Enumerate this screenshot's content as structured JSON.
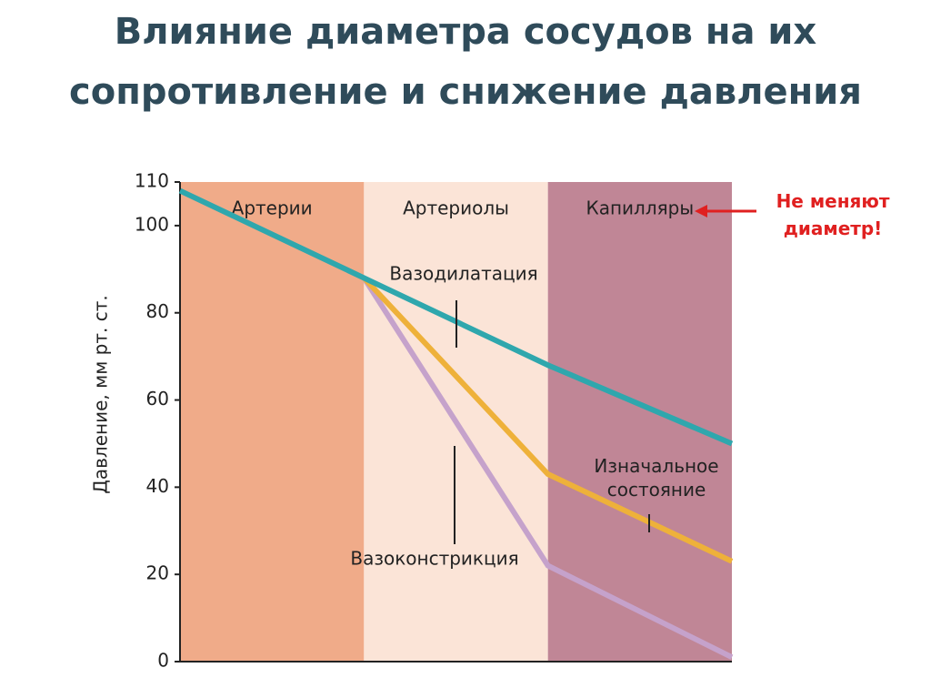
{
  "chart_data": {
    "type": "line",
    "title": "Влияние диаметра сосудов на их сопротивление и снижение давления",
    "y_label": "Давление, мм рт. ст.",
    "regions": [
      {
        "label": "Артерии",
        "color": "#f0ab89"
      },
      {
        "label": "Артериолы",
        "color": "#fbe4d7"
      },
      {
        "label": "Капилляры",
        "color": "#c08696"
      }
    ],
    "series": [
      {
        "name": "Вазодилатация",
        "color": "#2fa7ad",
        "values": [
          108,
          88,
          68,
          50
        ]
      },
      {
        "name": "Изначальное состояние",
        "color": "#eeb13a",
        "values": [
          null,
          88,
          43,
          23
        ]
      },
      {
        "name": "Вазоконстрикция",
        "color": "#c5a2cb",
        "values": [
          null,
          88,
          22,
          1
        ]
      }
    ],
    "annotation": "Не меняют диаметр!",
    "ylim": [
      0,
      110
    ],
    "yticks": [
      0,
      20,
      40,
      60,
      80,
      100,
      110
    ]
  }
}
